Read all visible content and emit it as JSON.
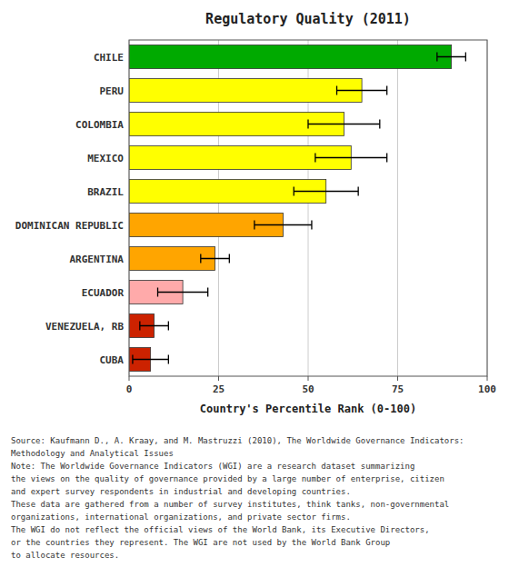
{
  "chart_data": {
    "type": "bar",
    "orientation": "horizontal",
    "title": "Regulatory Quality (2011)",
    "xlabel": "Country's Percentile Rank (0-100)",
    "categories": [
      "CHILE",
      "PERU",
      "COLOMBIA",
      "MEXICO",
      "BRAZIL",
      "DOMINICAN REPUBLIC",
      "ARGENTINA",
      "ECUADOR",
      "VENEZUELA, RB",
      "CUBA"
    ],
    "values": [
      90,
      65,
      60,
      62,
      55,
      43,
      24,
      15,
      7,
      6
    ],
    "errors": [
      4,
      7,
      10,
      10,
      9,
      8,
      4,
      7,
      4,
      5
    ],
    "colors": [
      "#00aa00",
      "#ffff00",
      "#ffff00",
      "#ffff00",
      "#ffff00",
      "#ffa500",
      "#ffa500",
      "#ffaaaa",
      "#cc2200",
      "#cc2200"
    ],
    "xlim": [
      0,
      100
    ],
    "xticks": [
      0,
      25,
      50,
      75,
      100
    ],
    "grid": true,
    "annotations": [
      "Source: Kaufmann D., A. Kraay, and M. Mastruzzi (2010), The Worldwide Governance Indicators:",
      "Methodology and Analytical Issues",
      "Note: The Worldwide Governance Indicators (WGI) are a research dataset summarizing",
      "the views on the quality of governance provided by a large number of enterprise, citizen",
      "and expert survey respondents in industrial and developing countries.",
      "These data are gathered from a number of survey institutes, think tanks, non-governmental",
      "organizations, international organizations, and private sector firms.",
      "The WGI do not reflect the official views of the World Bank, its Executive Directors,",
      "or the countries they represent. The WGI are not used by the World Bank Group",
      "to allocate resources."
    ]
  }
}
